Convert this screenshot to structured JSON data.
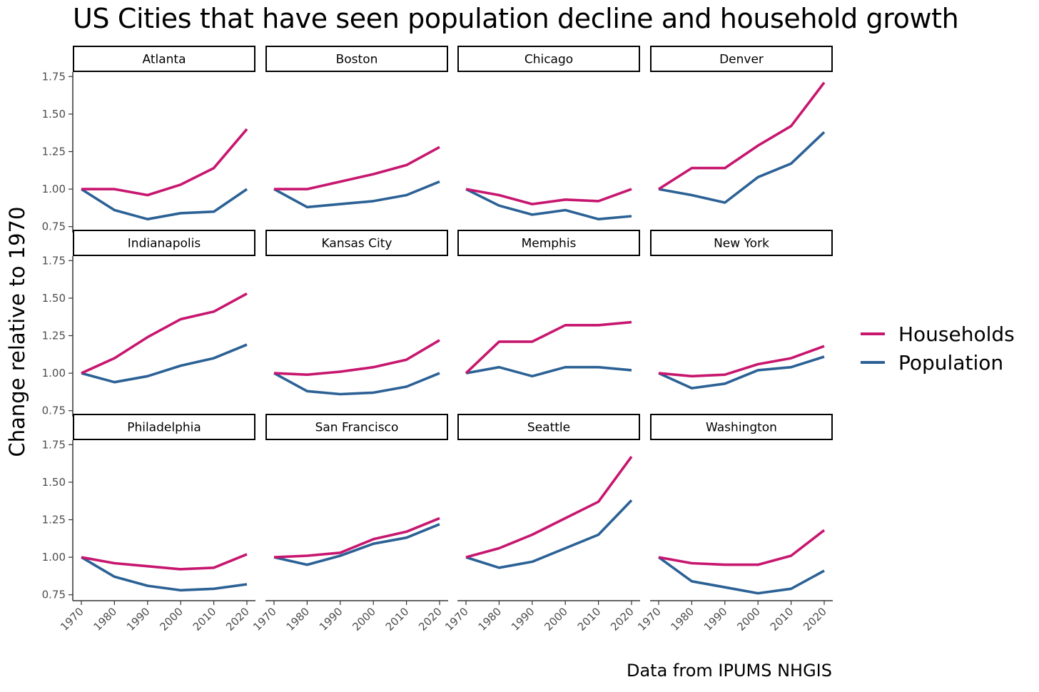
{
  "title": "US Cities that have seen population decline and household growth",
  "caption": "Data from IPUMS NHGIS",
  "chart_data": {
    "type": "line",
    "facet_layout": "3 rows x 4 columns",
    "ylabel": "Change relative to 1970",
    "xlabel": "",
    "x": [
      1970,
      1980,
      1990,
      2000,
      2010,
      2020
    ],
    "x_tick_labels": [
      "1970",
      "1980",
      "1990",
      "2000",
      "2010",
      "2020"
    ],
    "ylim": [
      0.72,
      1.78
    ],
    "y_ticks": [
      0.75,
      1.0,
      1.25,
      1.5,
      1.75
    ],
    "y_tick_labels": [
      "0.75",
      "1.00",
      "1.25",
      "1.50",
      "1.75"
    ],
    "grid": false,
    "legend_position": "right",
    "legend": [
      {
        "name": "Households",
        "color": "#c7166f"
      },
      {
        "name": "Population",
        "color": "#2b6195"
      }
    ],
    "panels": [
      {
        "city": "Atlanta",
        "households": [
          1.0,
          1.0,
          0.96,
          1.03,
          1.14,
          1.4
        ],
        "population": [
          1.0,
          0.86,
          0.8,
          0.84,
          0.85,
          1.0
        ]
      },
      {
        "city": "Boston",
        "households": [
          1.0,
          1.0,
          1.05,
          1.1,
          1.16,
          1.28
        ],
        "population": [
          1.0,
          0.88,
          0.9,
          0.92,
          0.96,
          1.05
        ]
      },
      {
        "city": "Chicago",
        "households": [
          1.0,
          0.96,
          0.9,
          0.93,
          0.92,
          1.0
        ],
        "population": [
          1.0,
          0.89,
          0.83,
          0.86,
          0.8,
          0.82
        ]
      },
      {
        "city": "Denver",
        "households": [
          1.0,
          1.14,
          1.14,
          1.29,
          1.42,
          1.71
        ],
        "population": [
          1.0,
          0.96,
          0.91,
          1.08,
          1.17,
          1.38
        ]
      },
      {
        "city": "Indianapolis",
        "households": [
          1.0,
          1.1,
          1.24,
          1.36,
          1.41,
          1.53
        ],
        "population": [
          1.0,
          0.94,
          0.98,
          1.05,
          1.1,
          1.19
        ]
      },
      {
        "city": "Kansas City",
        "households": [
          1.0,
          0.99,
          1.01,
          1.04,
          1.09,
          1.22
        ],
        "population": [
          1.0,
          0.88,
          0.86,
          0.87,
          0.91,
          1.0
        ]
      },
      {
        "city": "Memphis",
        "households": [
          1.0,
          1.21,
          1.21,
          1.32,
          1.32,
          1.34
        ],
        "population": [
          1.0,
          1.04,
          0.98,
          1.04,
          1.04,
          1.02
        ]
      },
      {
        "city": "New York",
        "households": [
          1.0,
          0.98,
          0.99,
          1.06,
          1.1,
          1.18
        ],
        "population": [
          1.0,
          0.9,
          0.93,
          1.02,
          1.04,
          1.11
        ]
      },
      {
        "city": "Philadelphia",
        "households": [
          1.0,
          0.96,
          0.94,
          0.92,
          0.93,
          1.02
        ],
        "population": [
          1.0,
          0.87,
          0.81,
          0.78,
          0.79,
          0.82
        ]
      },
      {
        "city": "San Francisco",
        "households": [
          1.0,
          1.01,
          1.03,
          1.12,
          1.17,
          1.26
        ],
        "population": [
          1.0,
          0.95,
          1.01,
          1.09,
          1.13,
          1.22
        ]
      },
      {
        "city": "Seattle",
        "households": [
          1.0,
          1.06,
          1.15,
          1.26,
          1.37,
          1.67
        ],
        "population": [
          1.0,
          0.93,
          0.97,
          1.06,
          1.15,
          1.38
        ]
      },
      {
        "city": "Washington",
        "households": [
          1.0,
          0.96,
          0.95,
          0.95,
          1.01,
          1.18
        ],
        "population": [
          1.0,
          0.84,
          0.8,
          0.76,
          0.79,
          0.91
        ]
      }
    ]
  }
}
